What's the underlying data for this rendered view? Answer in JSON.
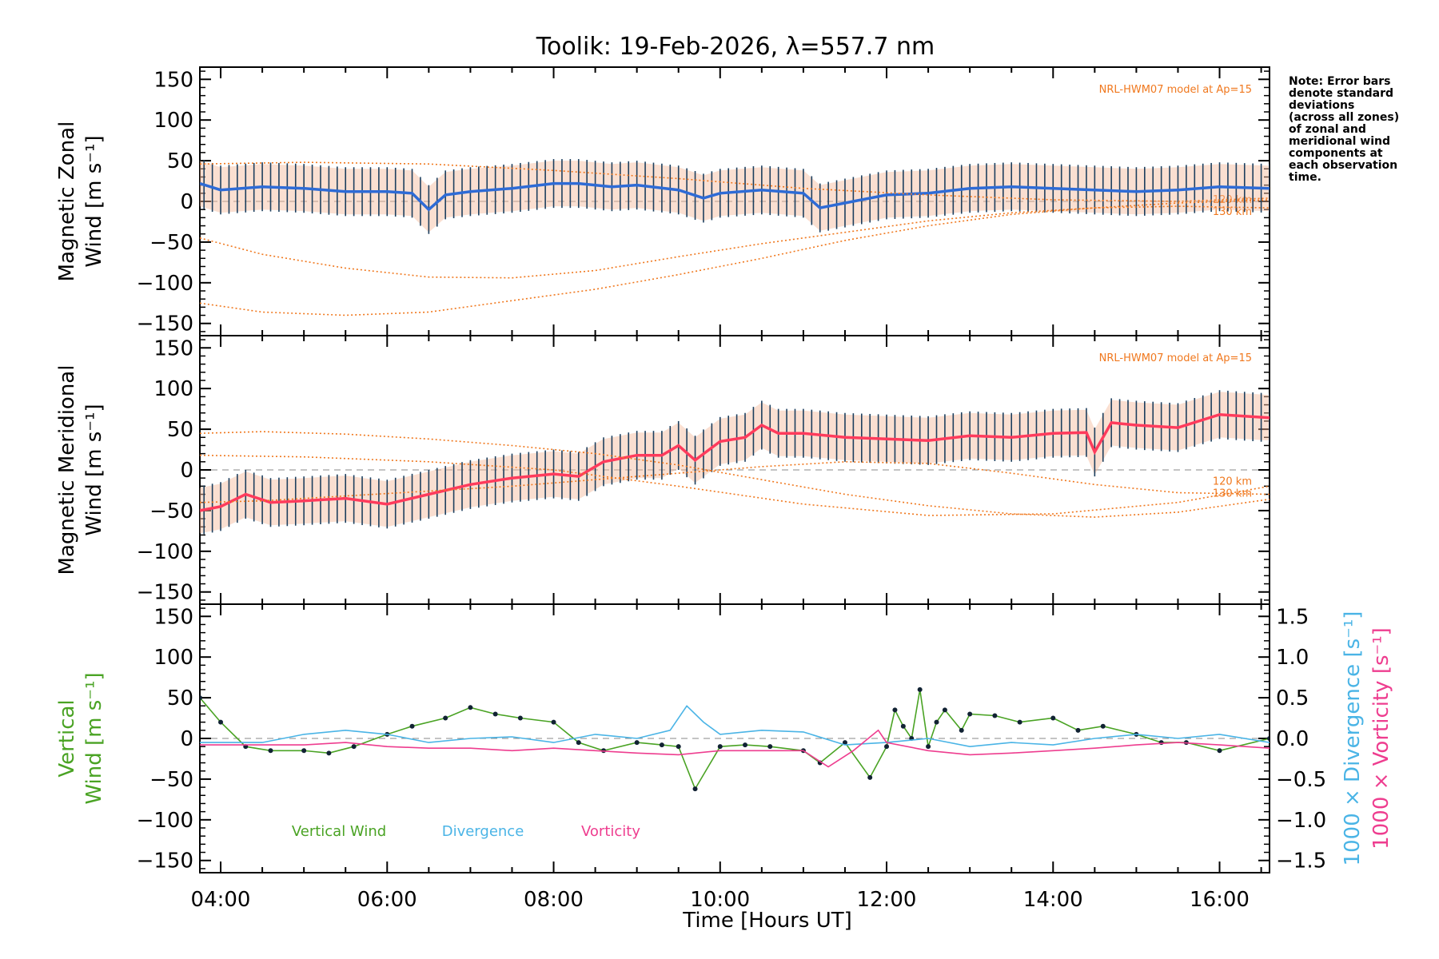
{
  "chart_data": {
    "type": "line",
    "title": "Toolik: 19-Feb-2026, λ=557.7 nm",
    "xlabel": "Time [Hours UT]",
    "x_ticks": [
      "04:00",
      "06:00",
      "08:00",
      "10:00",
      "12:00",
      "14:00",
      "16:00"
    ],
    "xlim_hours": [
      3.75,
      16.6
    ],
    "note": [
      "Note: Error bars",
      "denote standard",
      "deviations",
      "(across all zones)",
      "of zonal and",
      "meridional wind",
      "components at",
      "each observation",
      "time."
    ],
    "model_label": "NRL-HWM07 model at Ap=15",
    "model_altitudes": [
      "120 km",
      "130 km"
    ],
    "panels": [
      {
        "id": "zonal",
        "ylabel_line1": "Magnetic Zonal",
        "ylabel_line2": "Wind [m s⁻¹]",
        "ylim": [
          -165,
          165
        ],
        "y_ticks": [
          "150",
          "100",
          "50",
          "0",
          "−50",
          "−100",
          "−150"
        ],
        "series": [
          {
            "name": "Zonal wind (mean)",
            "color": "#2e6bd6",
            "x": [
              3.75,
              4.0,
              4.5,
              5.0,
              5.5,
              6.0,
              6.3,
              6.5,
              6.7,
              7.0,
              7.5,
              8.0,
              8.3,
              8.7,
              9.0,
              9.5,
              9.8,
              10.0,
              10.5,
              11.0,
              11.2,
              11.5,
              12.0,
              12.5,
              13.0,
              13.5,
              14.0,
              14.5,
              15.0,
              15.5,
              16.0,
              16.6
            ],
            "values": [
              22,
              14,
              18,
              16,
              12,
              12,
              10,
              -10,
              8,
              12,
              16,
              22,
              22,
              18,
              20,
              14,
              4,
              10,
              14,
              10,
              -8,
              -2,
              8,
              10,
              16,
              18,
              16,
              14,
              12,
              14,
              18,
              16
            ]
          },
          {
            "name": "NRL-HWM07 120 km",
            "color": "#f0781e",
            "x": [
              3.75,
              4.5,
              5.5,
              6.5,
              7.5,
              8.5,
              9.5,
              10.5,
              11.5,
              12.5,
              13.5,
              14.5,
              15.5,
              16.6
            ],
            "values": [
              -45,
              -65,
              -82,
              -93,
              -94,
              -85,
              -68,
              -52,
              -38,
              -24,
              -14,
              -8,
              -6,
              -8
            ]
          },
          {
            "name": "NRL-HWM07 130 km",
            "color": "#f0781e",
            "x": [
              3.75,
              4.5,
              5.5,
              6.5,
              7.5,
              8.5,
              9.5,
              10.5,
              11.5,
              12.5,
              13.5,
              14.5,
              15.5,
              16.6
            ],
            "values": [
              -125,
              -136,
              -140,
              -136,
              -122,
              -108,
              -90,
              -70,
              -48,
              -30,
              -16,
              -8,
              -2,
              2
            ]
          },
          {
            "name": "NRL-HWM07 upper",
            "color": "#f0781e",
            "x": [
              3.75,
              5.0,
              6.5,
              8.0,
              9.5,
              11.0,
              12.5,
              14.0,
              15.5,
              16.6
            ],
            "values": [
              46,
              48,
              46,
              38,
              28,
              16,
              8,
              2,
              0,
              4
            ]
          }
        ]
      },
      {
        "id": "meridional",
        "ylabel_line1": "Magnetic Meridional",
        "ylabel_line2": "Wind [m s⁻¹]",
        "ylim": [
          -165,
          165
        ],
        "y_ticks": [
          "150",
          "100",
          "50",
          "0",
          "−50",
          "−100",
          "−150"
        ],
        "series": [
          {
            "name": "Meridional wind (mean)",
            "color": "#ff3b5c",
            "x": [
              3.75,
              4.0,
              4.3,
              4.6,
              5.0,
              5.5,
              6.0,
              6.5,
              7.0,
              7.5,
              8.0,
              8.3,
              8.6,
              9.0,
              9.3,
              9.5,
              9.7,
              10.0,
              10.3,
              10.5,
              10.7,
              11.0,
              11.5,
              12.0,
              12.5,
              13.0,
              13.5,
              14.0,
              14.4,
              14.5,
              14.7,
              15.0,
              15.5,
              16.0,
              16.6
            ],
            "values": [
              -50,
              -45,
              -30,
              -40,
              -38,
              -35,
              -42,
              -30,
              -18,
              -10,
              -5,
              -8,
              10,
              18,
              18,
              30,
              12,
              35,
              40,
              55,
              45,
              45,
              40,
              38,
              36,
              42,
              40,
              45,
              46,
              22,
              58,
              55,
              52,
              68,
              64
            ]
          },
          {
            "name": "NRL-HWM07 120 km",
            "color": "#f0781e",
            "x": [
              3.75,
              4.5,
              5.5,
              6.5,
              7.5,
              8.5,
              9.5,
              10.5,
              11.5,
              12.5,
              13.5,
              14.5,
              15.5,
              16.6
            ],
            "values": [
              -40,
              -38,
              -32,
              -26,
              -20,
              -12,
              -4,
              4,
              10,
              8,
              -4,
              -18,
              -28,
              -30
            ]
          },
          {
            "name": "NRL-HWM07 130 km",
            "color": "#f0781e",
            "x": [
              3.75,
              4.5,
              5.5,
              6.5,
              7.5,
              8.5,
              9.5,
              10.5,
              11.5,
              12.5,
              13.5,
              14.5,
              15.5,
              16.6
            ],
            "values": [
              45,
              47,
              44,
              38,
              30,
              20,
              6,
              -12,
              -30,
              -44,
              -54,
              -58,
              -52,
              -36
            ]
          },
          {
            "name": "NRL-HWM07 upper",
            "color": "#f0781e",
            "x": [
              3.75,
              5.0,
              6.5,
              8.0,
              9.5,
              11.0,
              12.5,
              14.0,
              15.5,
              16.6
            ],
            "values": [
              18,
              16,
              10,
              0,
              -20,
              -42,
              -56,
              -54,
              -40,
              -20
            ]
          }
        ]
      },
      {
        "id": "vertical",
        "ylabel_line1": "Vertical",
        "ylabel_line2": "Wind [m s⁻¹]",
        "ylim": [
          -165,
          165
        ],
        "y_ticks": [
          "150",
          "100",
          "50",
          "0",
          "−50",
          "−100",
          "−150"
        ],
        "right_axis": {
          "label1": "1000 × Divergence [s⁻¹]",
          "label2": "1000 × Vorticity [s⁻¹]",
          "ylim": [
            -1.5,
            1.5
          ],
          "ticks": [
            "1.5",
            "1.0",
            "0.5",
            "0.0",
            "−0.5",
            "−1.0",
            "−1.5"
          ]
        },
        "legend": [
          "Vertical Wind",
          "Divergence",
          "Vorticity"
        ],
        "series": [
          {
            "name": "Vertical Wind",
            "color": "#4aa324",
            "axis": "left",
            "x": [
              3.75,
              4.0,
              4.3,
              4.6,
              5.0,
              5.3,
              5.6,
              6.0,
              6.3,
              6.7,
              7.0,
              7.3,
              7.6,
              8.0,
              8.3,
              8.6,
              9.0,
              9.3,
              9.5,
              9.7,
              10.0,
              10.3,
              10.6,
              11.0,
              11.2,
              11.5,
              11.8,
              12.0,
              12.1,
              12.2,
              12.3,
              12.4,
              12.5,
              12.6,
              12.7,
              12.9,
              13.0,
              13.3,
              13.6,
              14.0,
              14.3,
              14.6,
              15.0,
              15.3,
              15.6,
              16.0,
              16.6
            ],
            "values": [
              50,
              20,
              -10,
              -15,
              -15,
              -18,
              -10,
              5,
              15,
              25,
              38,
              30,
              25,
              20,
              -5,
              -15,
              -5,
              -8,
              -10,
              -62,
              -10,
              -8,
              -10,
              -15,
              -30,
              -5,
              -48,
              -10,
              35,
              15,
              0,
              60,
              -10,
              20,
              35,
              10,
              30,
              28,
              20,
              25,
              10,
              15,
              5,
              -5,
              -5,
              -15,
              0
            ]
          },
          {
            "name": "Divergence",
            "color": "#4ab4e6",
            "axis": "right",
            "x": [
              3.75,
              4.5,
              5.0,
              5.5,
              6.0,
              6.5,
              7.0,
              7.5,
              8.0,
              8.5,
              9.0,
              9.4,
              9.6,
              9.8,
              10.0,
              10.5,
              11.0,
              11.5,
              12.0,
              12.5,
              13.0,
              13.5,
              14.0,
              14.5,
              15.0,
              15.5,
              16.0,
              16.6
            ],
            "values": [
              -0.05,
              -0.05,
              0.05,
              0.1,
              0.05,
              -0.05,
              0.0,
              0.02,
              -0.05,
              0.05,
              0.0,
              0.1,
              0.4,
              0.2,
              0.05,
              0.1,
              0.08,
              -0.08,
              -0.05,
              0.0,
              -0.1,
              -0.05,
              -0.08,
              0.0,
              0.05,
              0.0,
              0.05,
              -0.05
            ]
          },
          {
            "name": "Vorticity",
            "color": "#ee3d8f",
            "axis": "right",
            "x": [
              3.75,
              4.5,
              5.0,
              5.5,
              6.0,
              6.5,
              7.0,
              7.5,
              8.0,
              8.5,
              9.0,
              9.5,
              10.0,
              10.5,
              11.0,
              11.3,
              11.6,
              11.9,
              12.0,
              12.5,
              13.0,
              13.5,
              14.0,
              14.5,
              15.0,
              15.5,
              16.0,
              16.6
            ],
            "values": [
              -0.08,
              -0.08,
              -0.08,
              -0.05,
              -0.1,
              -0.12,
              -0.12,
              -0.15,
              -0.12,
              -0.15,
              -0.18,
              -0.2,
              -0.15,
              -0.15,
              -0.15,
              -0.35,
              -0.15,
              0.1,
              -0.05,
              -0.15,
              -0.2,
              -0.18,
              -0.15,
              -0.12,
              -0.08,
              -0.05,
              -0.08,
              -0.12
            ]
          }
        ]
      }
    ]
  }
}
